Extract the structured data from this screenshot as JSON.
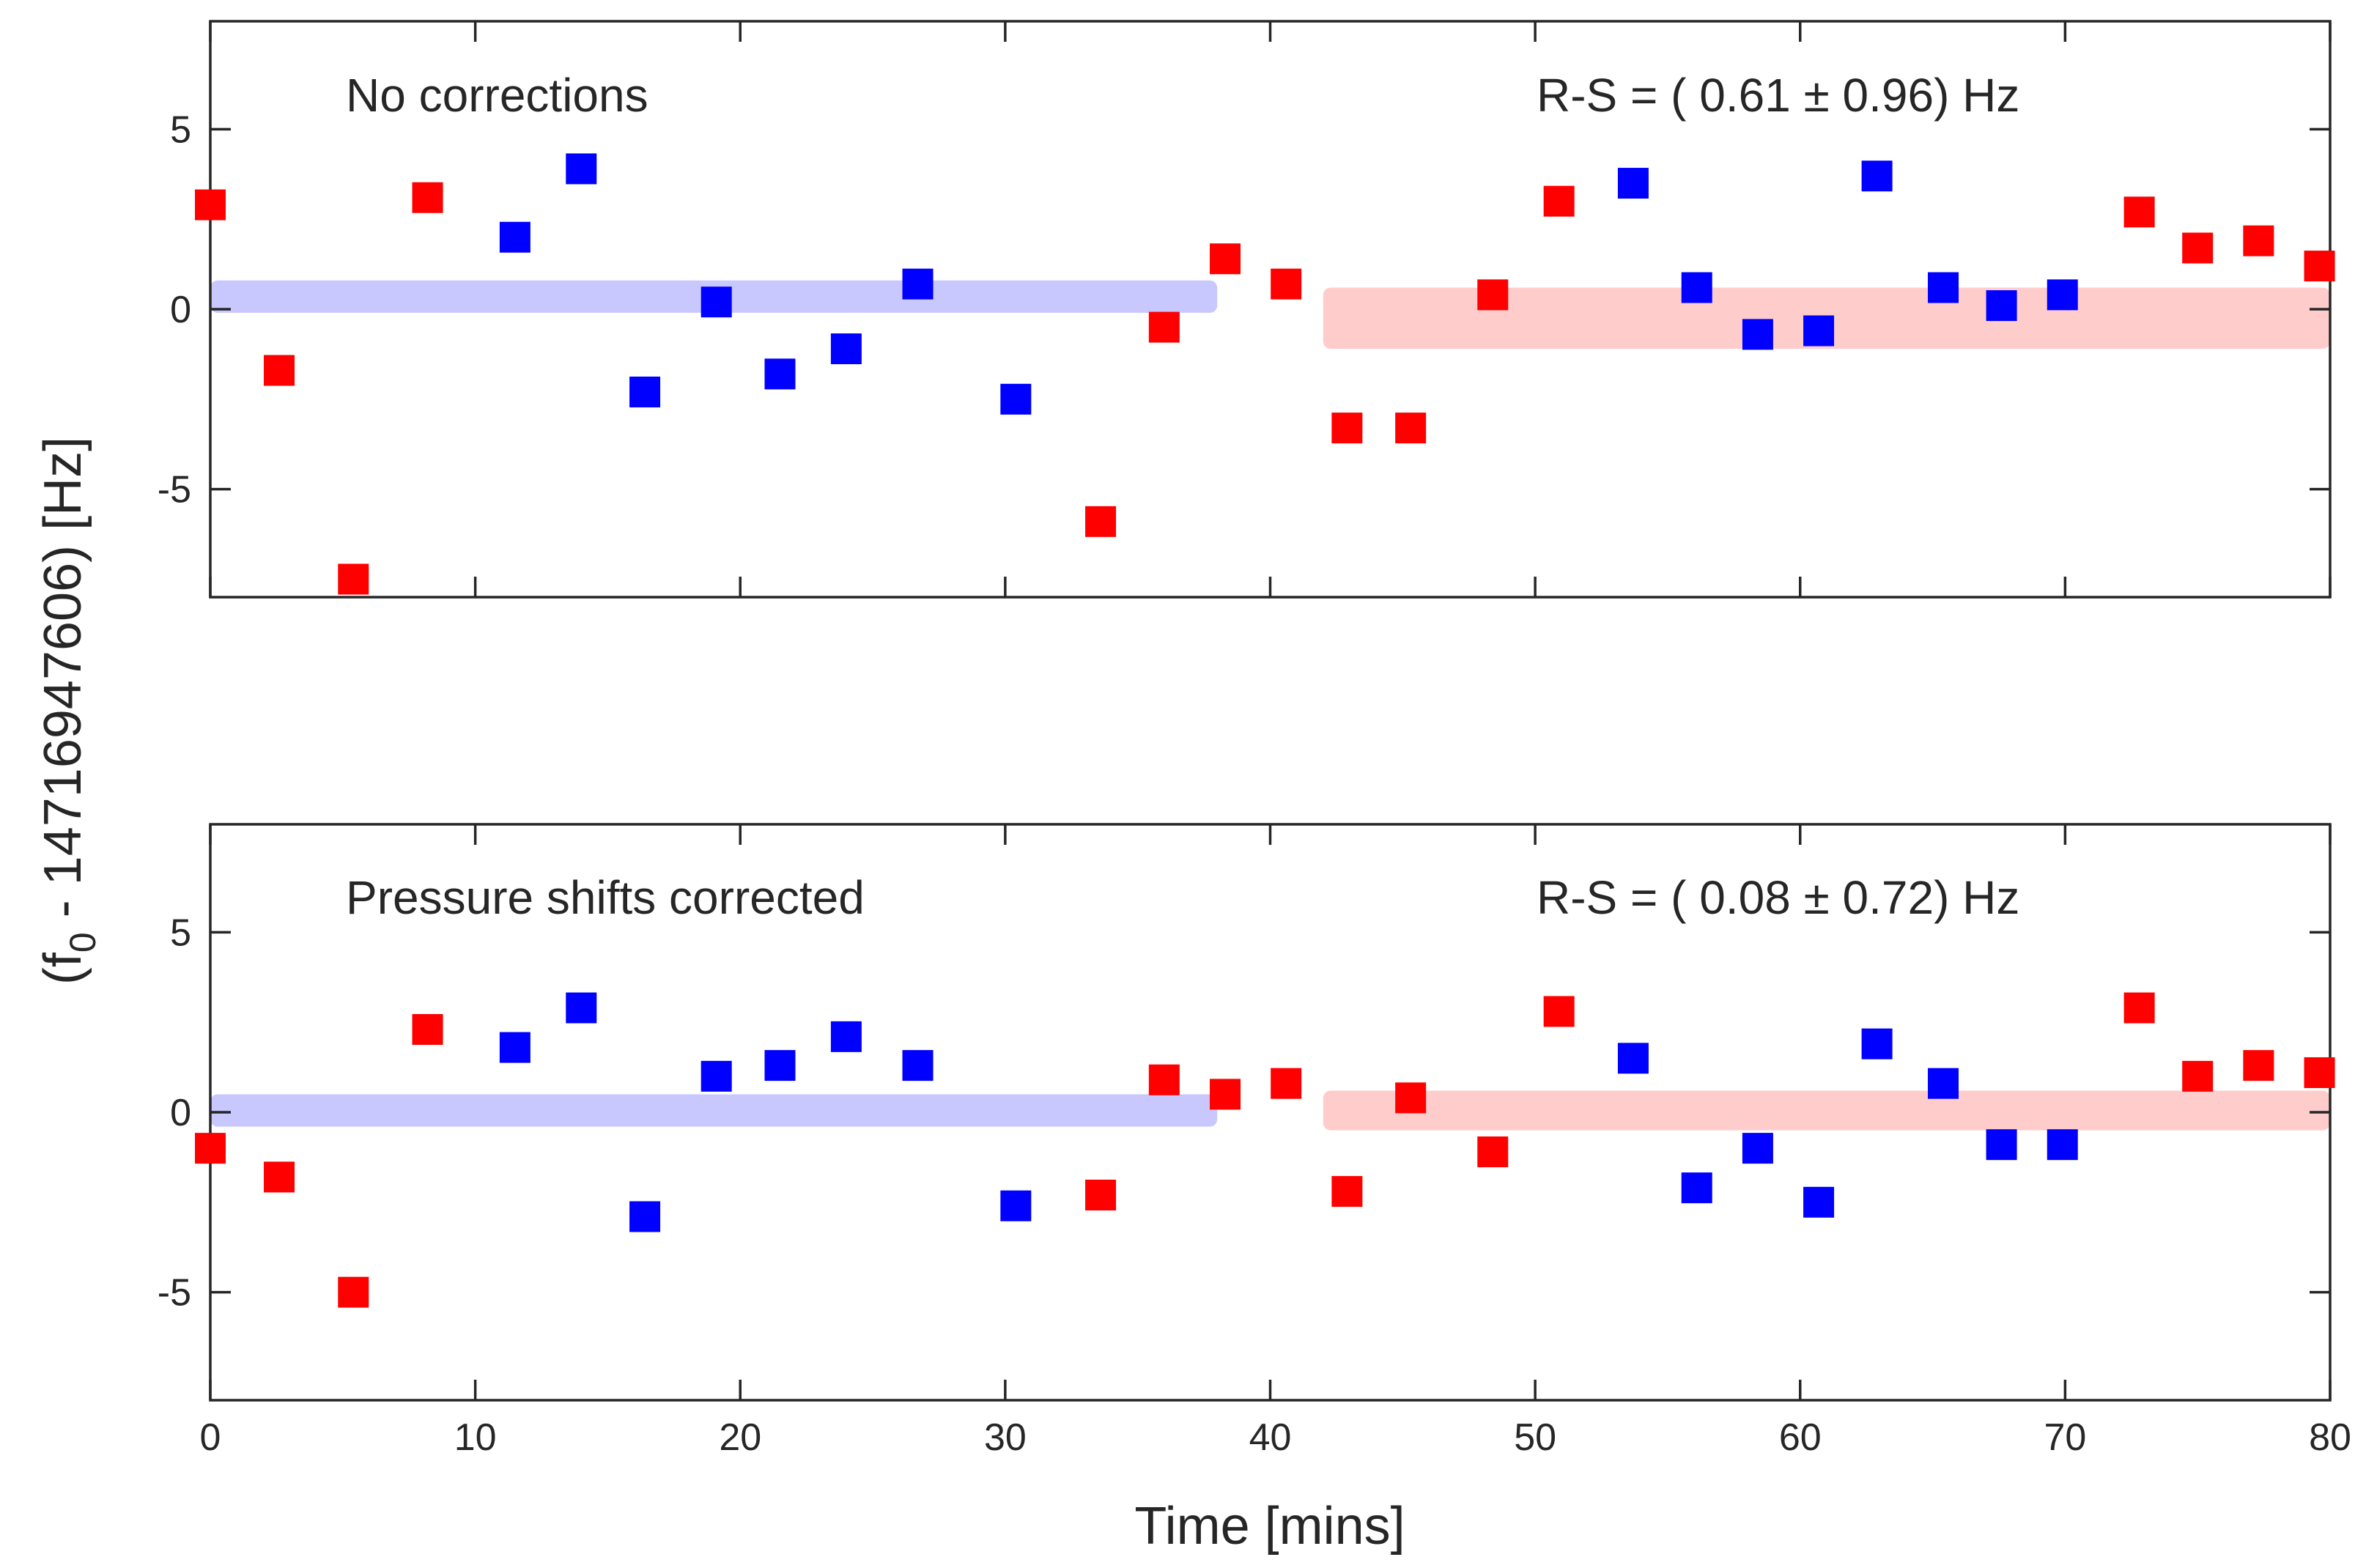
{
  "ylabel_main": "(f",
  "ylabel_sub": "0",
  "ylabel_rest": " - 14716947606) [Hz]",
  "chart_data": [
    {
      "type": "scatter",
      "annotation_left": "No corrections",
      "annotation_right": "R-S = ( 0.61 ± 0.96) Hz",
      "xlabel": "",
      "xlim": [
        0,
        80
      ],
      "ylim": [
        -8,
        8
      ],
      "xticks": [
        "0",
        "10",
        "20",
        "30",
        "40",
        "50",
        "60",
        "70",
        "80"
      ],
      "yticks": [
        {
          "value": 5,
          "label": "5"
        },
        {
          "value": 0,
          "label": "0"
        },
        {
          "value": -5,
          "label": "-5"
        }
      ],
      "bands": [
        {
          "x": [
            0,
            38
          ],
          "y": [
            -0.1,
            0.8
          ],
          "color": "#c8c8ff"
        },
        {
          "x": [
            42,
            80
          ],
          "y": [
            -1.1,
            0.6
          ],
          "color": "#ffcccc"
        }
      ],
      "series": [
        {
          "color": "#ff0000",
          "points": [
            [
              0,
              2.9
            ],
            [
              2.6,
              -1.7
            ],
            [
              5.4,
              -7.5
            ],
            [
              8.2,
              3.1
            ],
            [
              33.6,
              -5.9
            ],
            [
              36,
              -0.5
            ],
            [
              38.3,
              1.4
            ],
            [
              40.6,
              0.7
            ],
            [
              42.9,
              -3.3
            ],
            [
              45.3,
              -3.3
            ],
            [
              48.4,
              0.4
            ],
            [
              50.9,
              3.0
            ],
            [
              72.8,
              2.7
            ],
            [
              75,
              1.7
            ],
            [
              77.3,
              1.9
            ],
            [
              79.6,
              1.2
            ]
          ]
        },
        {
          "color": "#0000ff",
          "points": [
            [
              11.5,
              2.0
            ],
            [
              14,
              3.9
            ],
            [
              16.4,
              -2.3
            ],
            [
              19.1,
              0.2
            ],
            [
              21.5,
              -1.8
            ],
            [
              24,
              -1.1
            ],
            [
              26.7,
              0.7
            ],
            [
              30.4,
              -2.5
            ],
            [
              53.7,
              3.5
            ],
            [
              56.1,
              0.6
            ],
            [
              58.4,
              -0.7
            ],
            [
              60.7,
              -0.6
            ],
            [
              62.9,
              3.7
            ],
            [
              65.4,
              0.6
            ],
            [
              67.6,
              0.1
            ],
            [
              69.9,
              0.4
            ]
          ]
        }
      ]
    },
    {
      "type": "scatter",
      "annotation_left": "Pressure shifts corrected",
      "annotation_right": "R-S = ( 0.08 ± 0.72) Hz",
      "xlabel": "Time [mins]",
      "xlim": [
        0,
        80
      ],
      "ylim": [
        -8,
        8
      ],
      "xticks": [
        "0",
        "10",
        "20",
        "30",
        "40",
        "50",
        "60",
        "70",
        "80"
      ],
      "yticks": [
        {
          "value": 5,
          "label": "5"
        },
        {
          "value": 0,
          "label": "0"
        },
        {
          "value": -5,
          "label": "-5"
        }
      ],
      "bands": [
        {
          "x": [
            0,
            38
          ],
          "y": [
            -0.4,
            0.5
          ],
          "color": "#c8c8ff"
        },
        {
          "x": [
            42,
            80
          ],
          "y": [
            -0.5,
            0.6
          ],
          "color": "#ffcccc"
        }
      ],
      "series": [
        {
          "color": "#ff0000",
          "points": [
            [
              0,
              -1.0
            ],
            [
              2.6,
              -1.8
            ],
            [
              5.4,
              -5.0
            ],
            [
              8.2,
              2.3
            ],
            [
              33.6,
              -2.3
            ],
            [
              36,
              0.9
            ],
            [
              38.3,
              0.5
            ],
            [
              40.6,
              0.8
            ],
            [
              42.9,
              -2.2
            ],
            [
              45.3,
              0.4
            ],
            [
              48.4,
              -1.1
            ],
            [
              50.9,
              2.8
            ],
            [
              72.8,
              2.9
            ],
            [
              75,
              1.0
            ],
            [
              77.3,
              1.3
            ],
            [
              79.6,
              1.1
            ]
          ]
        },
        {
          "color": "#0000ff",
          "points": [
            [
              11.5,
              1.8
            ],
            [
              14,
              2.9
            ],
            [
              16.4,
              -2.9
            ],
            [
              19.1,
              1.0
            ],
            [
              21.5,
              1.3
            ],
            [
              24,
              2.1
            ],
            [
              26.7,
              1.3
            ],
            [
              30.4,
              -2.6
            ],
            [
              53.7,
              1.5
            ],
            [
              56.1,
              -2.1
            ],
            [
              58.4,
              -1.0
            ],
            [
              60.7,
              -2.5
            ],
            [
              62.9,
              1.9
            ],
            [
              65.4,
              0.8
            ],
            [
              67.6,
              -0.9
            ],
            [
              69.9,
              -0.9
            ]
          ]
        }
      ]
    }
  ]
}
